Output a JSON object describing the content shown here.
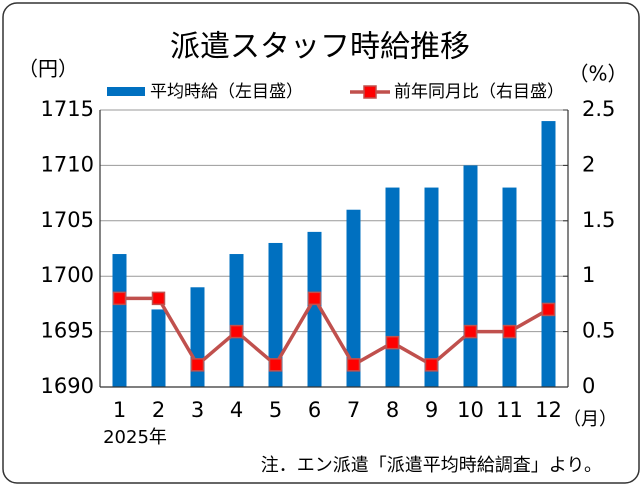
{
  "chart_data": {
    "type": "bar",
    "title": "派遣スタッフ時給推移",
    "y_label": "（円）",
    "y2_label": "（%）",
    "x_unit": "（月）",
    "year_label": "2025年",
    "note": "注．エン派遣「派遣平均時給調査」より。",
    "categories": [
      "1",
      "2",
      "3",
      "4",
      "5",
      "6",
      "7",
      "8",
      "9",
      "10",
      "11",
      "12"
    ],
    "series": [
      {
        "name": "平均時給（左目盛）",
        "color": "#0070c0",
        "type": "bar",
        "values": [
          1702,
          1697,
          1699,
          1702,
          1703,
          1704,
          1706,
          1708,
          1708,
          1710,
          1708,
          1714
        ]
      },
      {
        "name": "前年同月比（右目盛）",
        "color": "#c0504d",
        "marker_color": "#ff0000",
        "type": "line",
        "axis": "y2",
        "values": [
          0.8,
          0.8,
          0.2,
          0.5,
          0.2,
          0.8,
          0.2,
          0.4,
          0.2,
          0.5,
          0.5,
          0.7
        ]
      }
    ],
    "ylim": [
      1690,
      1715
    ],
    "yticks": [
      1690,
      1695,
      1700,
      1705,
      1710,
      1715
    ],
    "y2lim": [
      0,
      2.5
    ],
    "y2ticks": [
      0,
      0.5,
      1,
      1.5,
      2,
      2.5
    ],
    "grid": true
  }
}
